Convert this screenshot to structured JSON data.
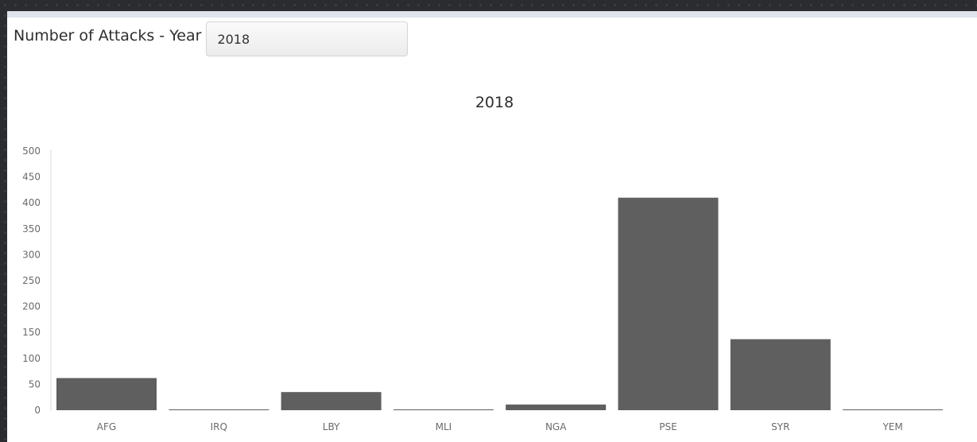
{
  "header": {
    "label": "Number of Attacks - Year",
    "selected_year": "2018"
  },
  "chart_data": {
    "type": "bar",
    "title": "2018",
    "xlabel": "",
    "ylabel": "",
    "categories": [
      "AFG",
      "IRQ",
      "LBY",
      "MLI",
      "NGA",
      "PSE",
      "SYR",
      "YEM"
    ],
    "values": [
      62,
      1,
      35,
      1,
      11,
      410,
      137,
      1
    ],
    "ylim": [
      0,
      500
    ],
    "yticks": [
      0,
      50,
      100,
      150,
      200,
      250,
      300,
      350,
      400,
      450,
      500
    ],
    "bar_color": "#5f5f5f",
    "grid": false,
    "legend": "none"
  }
}
